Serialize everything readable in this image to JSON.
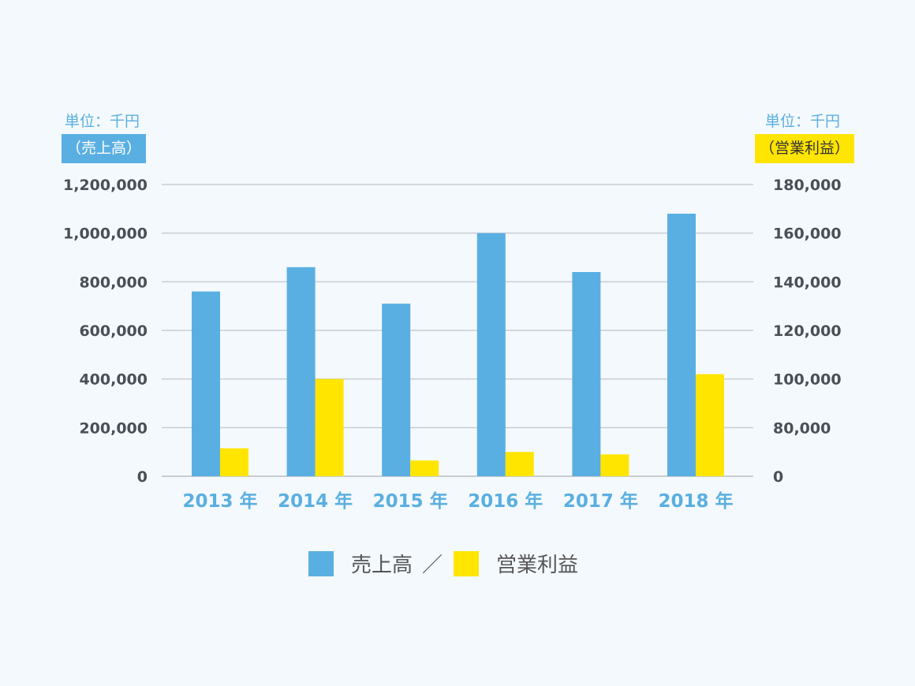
{
  "chart_data": {
    "type": "bar",
    "categories": [
      "2013 年",
      "2014 年",
      "2015 年",
      "2016 年",
      "2017 年",
      "2018 年"
    ],
    "series": [
      {
        "name": "売上高",
        "axis": "left",
        "color": "#5aafe2",
        "values": [
          760000,
          860000,
          710000,
          1000000,
          840000,
          1080000
        ]
      },
      {
        "name": "営業利益",
        "axis": "right",
        "color": "#ffe500",
        "values": [
          46000,
          100000,
          26000,
          40000,
          36000,
          102000
        ]
      }
    ],
    "left_axis": {
      "unit": "単位：千円",
      "label": "（売上高）",
      "ticks": [
        0,
        200000,
        400000,
        600000,
        800000,
        1000000,
        1200000
      ],
      "tick_labels": [
        "0",
        "200,000",
        "400,000",
        "600,000",
        "800,000",
        "1,000,000",
        "1,200,000"
      ],
      "ylim": [
        0,
        1200000
      ]
    },
    "right_axis": {
      "unit": "単位：千円",
      "label": "（営業利益）",
      "ticks": [
        0,
        80000,
        100000,
        120000,
        140000,
        160000,
        180000
      ],
      "tick_labels": [
        "0",
        "80,000",
        "100,000",
        "120,000",
        "140,000",
        "160,000",
        "180,000"
      ],
      "ylim": [
        0,
        180000
      ],
      "broken": true
    },
    "legend": {
      "items": [
        "売上高",
        "営業利益"
      ],
      "separator": "／",
      "placement": "bottom"
    },
    "grid": true
  }
}
